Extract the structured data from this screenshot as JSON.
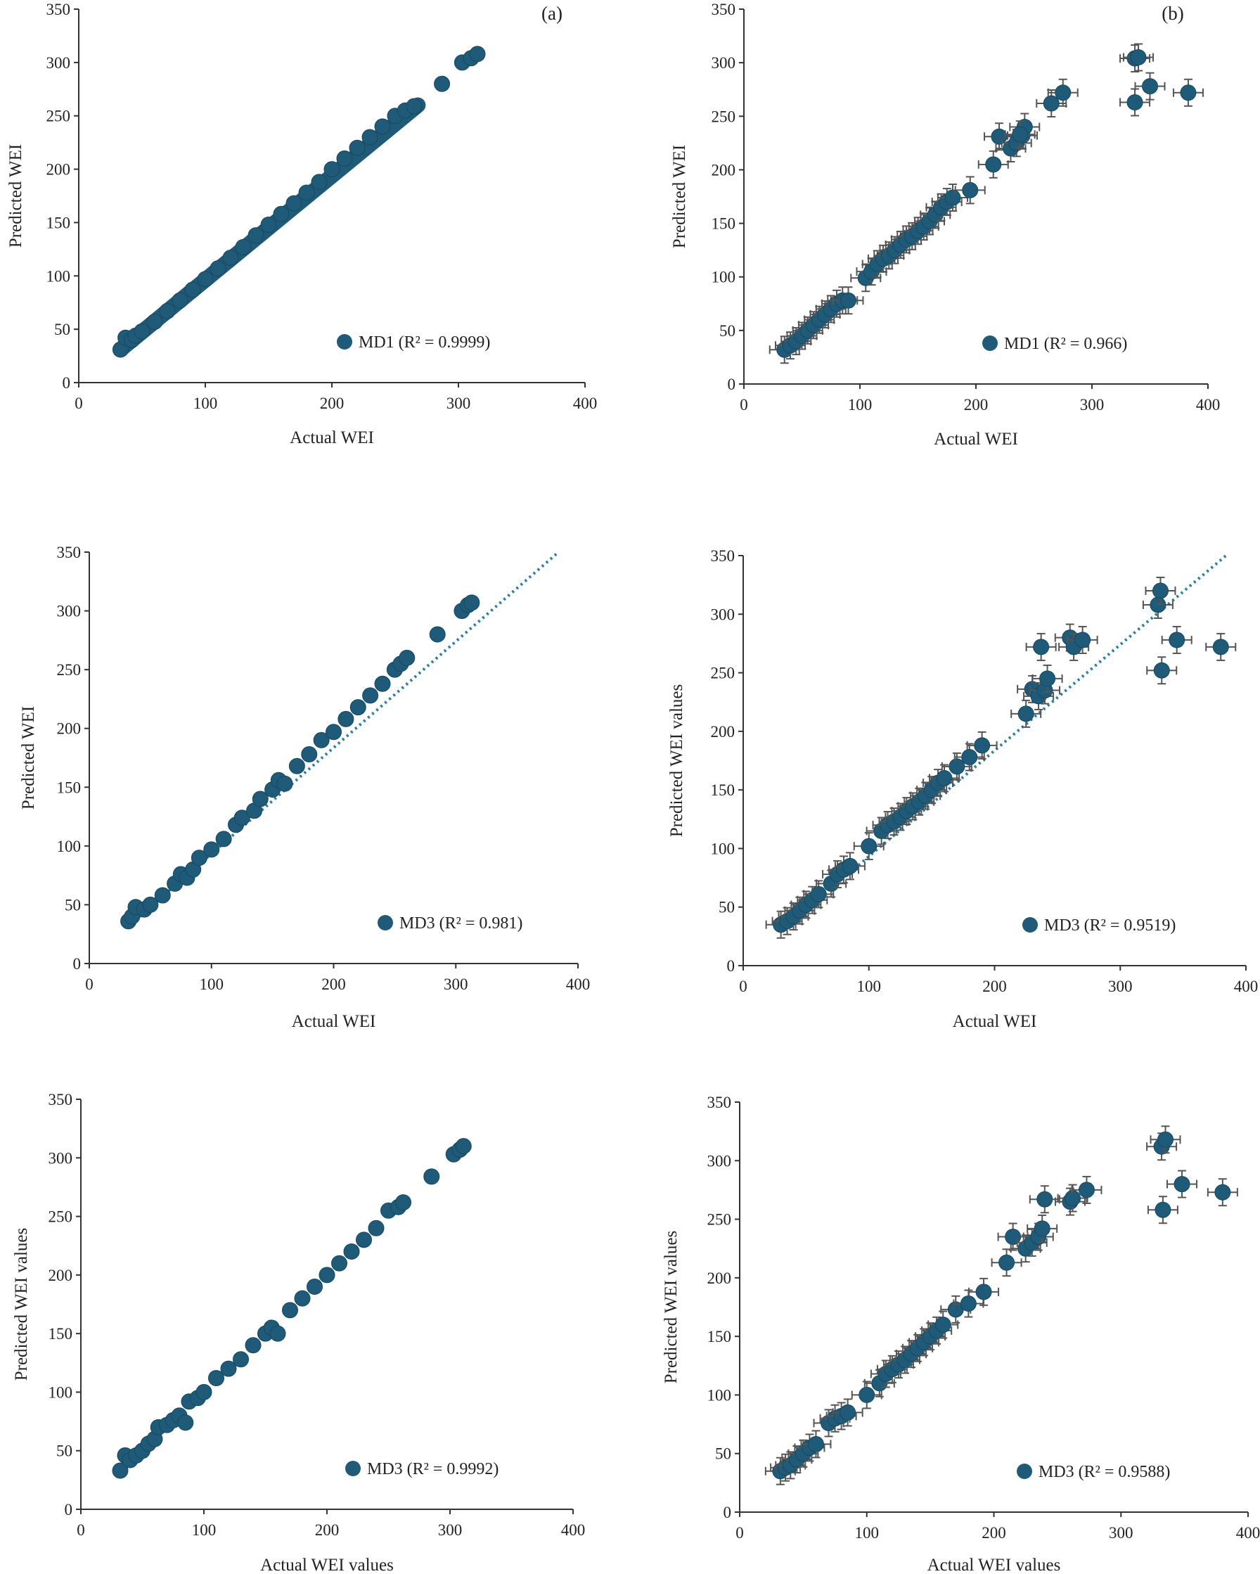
{
  "colors": {
    "marker": "#1f5a78",
    "marker_edge": "#17485f",
    "axis": "#333333",
    "error_bar": "#555555",
    "trend": "#2c7ea3"
  },
  "chart_data": [
    {
      "type": "scatter",
      "panel_label": "(a)",
      "xlabel": "Actual WEI",
      "ylabel": "Predicted WEI",
      "xlim": [
        0,
        400
      ],
      "ylim": [
        0,
        350
      ],
      "xticks": [
        "0",
        "100",
        "200",
        "300",
        "400"
      ],
      "yticks": [
        "0",
        "50",
        "100",
        "150",
        "200",
        "250",
        "300",
        "350"
      ],
      "error_bars": false,
      "trendline": false,
      "legend_position": "bottom-right",
      "series": [
        {
          "name": "MD1 (R² = 0.9999)",
          "points": [
            [
              33,
              31
            ],
            [
              37,
              42
            ],
            [
              42,
              40
            ],
            [
              45,
              44
            ],
            [
              50,
              48
            ],
            [
              60,
              57
            ],
            [
              70,
              67
            ],
            [
              80,
              77
            ],
            [
              90,
              87
            ],
            [
              100,
              97
            ],
            [
              110,
              107
            ],
            [
              120,
              117
            ],
            [
              130,
              127
            ],
            [
              140,
              138
            ],
            [
              150,
              148
            ],
            [
              160,
              158
            ],
            [
              170,
              168
            ],
            [
              180,
              178
            ],
            [
              190,
              188
            ],
            [
              200,
              200
            ],
            [
              210,
              210
            ],
            [
              220,
              220
            ],
            [
              230,
              230
            ],
            [
              240,
              240
            ],
            [
              250,
              250
            ],
            [
              258,
              255
            ],
            [
              265,
              259
            ],
            [
              287,
              280
            ],
            [
              303,
              300
            ],
            [
              310,
              304
            ],
            [
              315,
              308
            ]
          ],
          "continuous": [
            [
              33,
              31
            ],
            [
              268,
              260
            ]
          ]
        }
      ]
    },
    {
      "type": "scatter",
      "panel_label": "(b)",
      "xlabel": "Actual WEI",
      "ylabel": "Predicted WEI",
      "xlim": [
        0,
        400
      ],
      "ylim": [
        0,
        350
      ],
      "xticks": [
        "0",
        "100",
        "200",
        "300",
        "400"
      ],
      "yticks": [
        "0",
        "50",
        "100",
        "150",
        "200",
        "250",
        "300",
        "350"
      ],
      "error_bars": true,
      "trendline": false,
      "legend_position": "bottom-right",
      "series": [
        {
          "name": "MD1 (R² = 0.966)",
          "points": [
            [
              35,
              32
            ],
            [
              40,
              36
            ],
            [
              45,
              40
            ],
            [
              50,
              45
            ],
            [
              55,
              50
            ],
            [
              60,
              55
            ],
            [
              65,
              60
            ],
            [
              70,
              65
            ],
            [
              75,
              70
            ],
            [
              80,
              75
            ],
            [
              85,
              78
            ],
            [
              90,
              78
            ],
            [
              105,
              99
            ],
            [
              110,
              105
            ],
            [
              115,
              112
            ],
            [
              120,
              117
            ],
            [
              125,
              120
            ],
            [
              130,
              125
            ],
            [
              135,
              130
            ],
            [
              140,
              135
            ],
            [
              145,
              138
            ],
            [
              150,
              143
            ],
            [
              155,
              147
            ],
            [
              160,
              152
            ],
            [
              165,
              158
            ],
            [
              170,
              165
            ],
            [
              175,
              170
            ],
            [
              180,
              174
            ],
            [
              195,
              181
            ],
            [
              215,
              205
            ],
            [
              220,
              231
            ],
            [
              230,
              220
            ],
            [
              235,
              225
            ],
            [
              240,
              232
            ],
            [
              242,
              240
            ],
            [
              238,
              233
            ],
            [
              265,
              262
            ],
            [
              275,
              272
            ],
            [
              337,
              304
            ],
            [
              340,
              305
            ],
            [
              337,
              263
            ],
            [
              350,
              278
            ],
            [
              383,
              272
            ]
          ]
        }
      ]
    },
    {
      "type": "scatter",
      "panel_label": "",
      "xlabel": "Actual WEI",
      "ylabel": "Predicted WEI",
      "xlim": [
        0,
        400
      ],
      "ylim": [
        0,
        350
      ],
      "xticks": [
        "0",
        "100",
        "200",
        "300",
        "400"
      ],
      "yticks": [
        "0",
        "50",
        "100",
        "150",
        "200",
        "250",
        "300",
        "350"
      ],
      "error_bars": false,
      "trendline": true,
      "legend_position": "bottom-right",
      "series": [
        {
          "name": "MD3 (R² = 0.981)",
          "points": [
            [
              32,
              36
            ],
            [
              35,
              40
            ],
            [
              38,
              48
            ],
            [
              45,
              46
            ],
            [
              50,
              50
            ],
            [
              60,
              58
            ],
            [
              70,
              68
            ],
            [
              75,
              76
            ],
            [
              80,
              73
            ],
            [
              85,
              80
            ],
            [
              90,
              90
            ],
            [
              100,
              97
            ],
            [
              110,
              106
            ],
            [
              120,
              118
            ],
            [
              125,
              124
            ],
            [
              135,
              130
            ],
            [
              140,
              140
            ],
            [
              150,
              148
            ],
            [
              155,
              156
            ],
            [
              160,
              153
            ],
            [
              170,
              168
            ],
            [
              180,
              178
            ],
            [
              190,
              190
            ],
            [
              200,
              197
            ],
            [
              210,
              208
            ],
            [
              220,
              218
            ],
            [
              230,
              228
            ],
            [
              240,
              238
            ],
            [
              250,
              250
            ],
            [
              255,
              255
            ],
            [
              260,
              260
            ],
            [
              285,
              280
            ],
            [
              305,
              300
            ],
            [
              310,
              305
            ],
            [
              313,
              307
            ]
          ]
        }
      ]
    },
    {
      "type": "scatter",
      "panel_label": "",
      "xlabel": "Actual WEI",
      "ylabel": "Predicted WEI values",
      "xlim": [
        0,
        400
      ],
      "ylim": [
        0,
        350
      ],
      "xticks": [
        "0",
        "100",
        "200",
        "300",
        "400"
      ],
      "yticks": [
        "0",
        "50",
        "100",
        "150",
        "200",
        "250",
        "300",
        "350"
      ],
      "error_bars": true,
      "trendline": true,
      "legend_position": "bottom-right",
      "series": [
        {
          "name": "MD3 (R² = 0.9519)",
          "points": [
            [
              30,
              35
            ],
            [
              35,
              38
            ],
            [
              40,
              42
            ],
            [
              45,
              47
            ],
            [
              50,
              52
            ],
            [
              55,
              56
            ],
            [
              60,
              61
            ],
            [
              70,
              70
            ],
            [
              75,
              78
            ],
            [
              80,
              82
            ],
            [
              85,
              85
            ],
            [
              100,
              102
            ],
            [
              110,
              115
            ],
            [
              115,
              120
            ],
            [
              120,
              123
            ],
            [
              125,
              127
            ],
            [
              130,
              132
            ],
            [
              135,
              136
            ],
            [
              140,
              140
            ],
            [
              145,
              145
            ],
            [
              150,
              150
            ],
            [
              155,
              156
            ],
            [
              160,
              160
            ],
            [
              170,
              170
            ],
            [
              180,
              178
            ],
            [
              190,
              188
            ],
            [
              225,
              215
            ],
            [
              230,
              236
            ],
            [
              235,
              230
            ],
            [
              240,
              235
            ],
            [
              242,
              245
            ],
            [
              237,
              272
            ],
            [
              260,
              280
            ],
            [
              263,
              272
            ],
            [
              270,
              278
            ],
            [
              330,
              308
            ],
            [
              332,
              320
            ],
            [
              333,
              252
            ],
            [
              345,
              278
            ],
            [
              380,
              272
            ]
          ]
        }
      ]
    },
    {
      "type": "scatter",
      "panel_label": "",
      "xlabel": "Actual WEI values",
      "ylabel": "Predicted WEI values",
      "xlim": [
        0,
        400
      ],
      "ylim": [
        0,
        350
      ],
      "xticks": [
        "0",
        "100",
        "200",
        "300",
        "400"
      ],
      "yticks": [
        "0",
        "50",
        "100",
        "150",
        "200",
        "250",
        "300",
        "350"
      ],
      "error_bars": false,
      "trendline": false,
      "legend_position": "bottom-right",
      "series": [
        {
          "name": "MD3 (R² = 0.9992)",
          "points": [
            [
              32,
              33
            ],
            [
              36,
              46
            ],
            [
              40,
              42
            ],
            [
              45,
              46
            ],
            [
              50,
              50
            ],
            [
              55,
              56
            ],
            [
              60,
              60
            ],
            [
              63,
              70
            ],
            [
              70,
              72
            ],
            [
              75,
              76
            ],
            [
              80,
              80
            ],
            [
              85,
              74
            ],
            [
              88,
              92
            ],
            [
              95,
              95
            ],
            [
              100,
              100
            ],
            [
              110,
              112
            ],
            [
              120,
              120
            ],
            [
              130,
              128
            ],
            [
              140,
              140
            ],
            [
              150,
              150
            ],
            [
              155,
              155
            ],
            [
              160,
              150
            ],
            [
              170,
              170
            ],
            [
              180,
              180
            ],
            [
              190,
              190
            ],
            [
              200,
              200
            ],
            [
              210,
              210
            ],
            [
              220,
              220
            ],
            [
              230,
              230
            ],
            [
              240,
              240
            ],
            [
              250,
              255
            ],
            [
              258,
              258
            ],
            [
              262,
              262
            ],
            [
              285,
              284
            ],
            [
              303,
              303
            ],
            [
              308,
              307
            ],
            [
              311,
              310
            ]
          ]
        }
      ]
    },
    {
      "type": "scatter",
      "panel_label": "",
      "xlabel": "Actual WEI values",
      "ylabel": "Predicted WEI values",
      "xlim": [
        0,
        400
      ],
      "ylim": [
        0,
        350
      ],
      "xticks": [
        "0",
        "100",
        "200",
        "300",
        "400"
      ],
      "yticks": [
        "0",
        "50",
        "100",
        "150",
        "200",
        "250",
        "300",
        "350"
      ],
      "error_bars": true,
      "trendline": false,
      "legend_position": "bottom-right",
      "series": [
        {
          "name": "MD3 (R² = 0.9588)",
          "points": [
            [
              32,
              35
            ],
            [
              36,
              38
            ],
            [
              40,
              40
            ],
            [
              45,
              45
            ],
            [
              50,
              50
            ],
            [
              55,
              55
            ],
            [
              60,
              58
            ],
            [
              70,
              76
            ],
            [
              75,
              80
            ],
            [
              80,
              82
            ],
            [
              85,
              85
            ],
            [
              100,
              100
            ],
            [
              110,
              110
            ],
            [
              115,
              118
            ],
            [
              120,
              122
            ],
            [
              125,
              126
            ],
            [
              130,
              130
            ],
            [
              135,
              135
            ],
            [
              140,
              140
            ],
            [
              145,
              145
            ],
            [
              150,
              150
            ],
            [
              155,
              155
            ],
            [
              160,
              160
            ],
            [
              170,
              173
            ],
            [
              180,
              178
            ],
            [
              192,
              188
            ],
            [
              210,
              213
            ],
            [
              215,
              235
            ],
            [
              225,
              225
            ],
            [
              230,
              230
            ],
            [
              235,
              235
            ],
            [
              238,
              242
            ],
            [
              240,
              267
            ],
            [
              260,
              265
            ],
            [
              262,
              268
            ],
            [
              273,
              275
            ],
            [
              332,
              312
            ],
            [
              335,
              318
            ],
            [
              333,
              258
            ],
            [
              348,
              280
            ],
            [
              380,
              273
            ]
          ]
        }
      ]
    }
  ]
}
